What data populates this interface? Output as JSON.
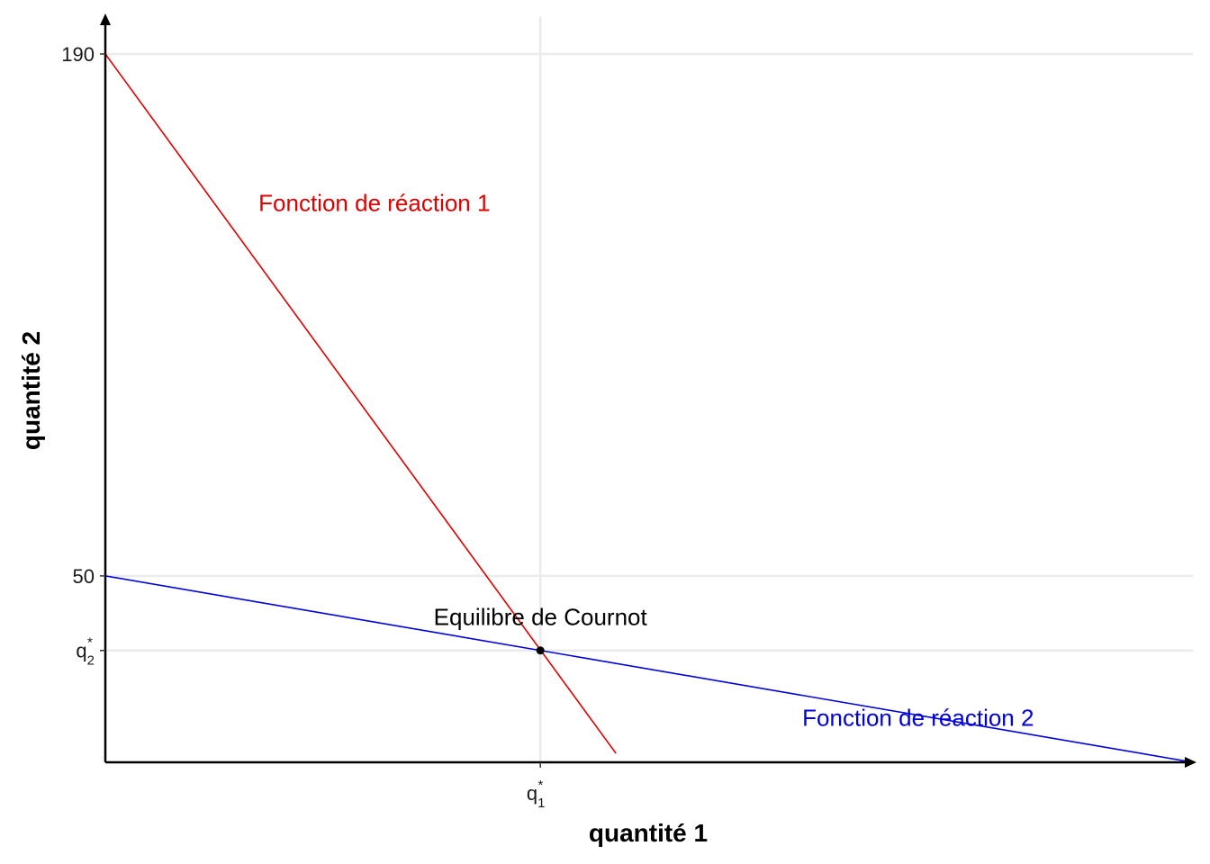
{
  "chart_data": {
    "type": "line",
    "title": "",
    "xlabel": "quantité 1",
    "ylabel": "quantité 2",
    "xlim": [
      0,
      190
    ],
    "ylim": [
      0,
      190
    ],
    "grid": true,
    "y_ticks": [
      {
        "value": 190,
        "label": "190"
      },
      {
        "value": 50,
        "label": "50"
      },
      {
        "value": 30,
        "label": "q",
        "sup": "*",
        "sub": "2"
      }
    ],
    "x_ticks": [
      {
        "value": 76,
        "label": "q",
        "sup": "*",
        "sub": "1"
      }
    ],
    "series": [
      {
        "name": "Fonction de réaction 1",
        "color": "#e00000",
        "x": [
          0,
          89.2
        ],
        "y": [
          190,
          2.4
        ]
      },
      {
        "name": "Fonction de réaction 2",
        "color": "#0000dd",
        "x": [
          0,
          190
        ],
        "y": [
          50,
          0
        ]
      }
    ],
    "point": {
      "x": 76,
      "y": 30,
      "label": "Equilibre de Cournot",
      "color": "#000000"
    },
    "annotations": [
      {
        "text": "Fonction de réaction 1",
        "x": 47,
        "y": 150,
        "color": "#e00000"
      },
      {
        "text": "Fonction de réaction 2",
        "x": 142,
        "y": 12,
        "color": "#0000dd"
      },
      {
        "text": "Equilibre de Cournot",
        "x": 76,
        "y": 39,
        "color": "#000000"
      }
    ]
  }
}
